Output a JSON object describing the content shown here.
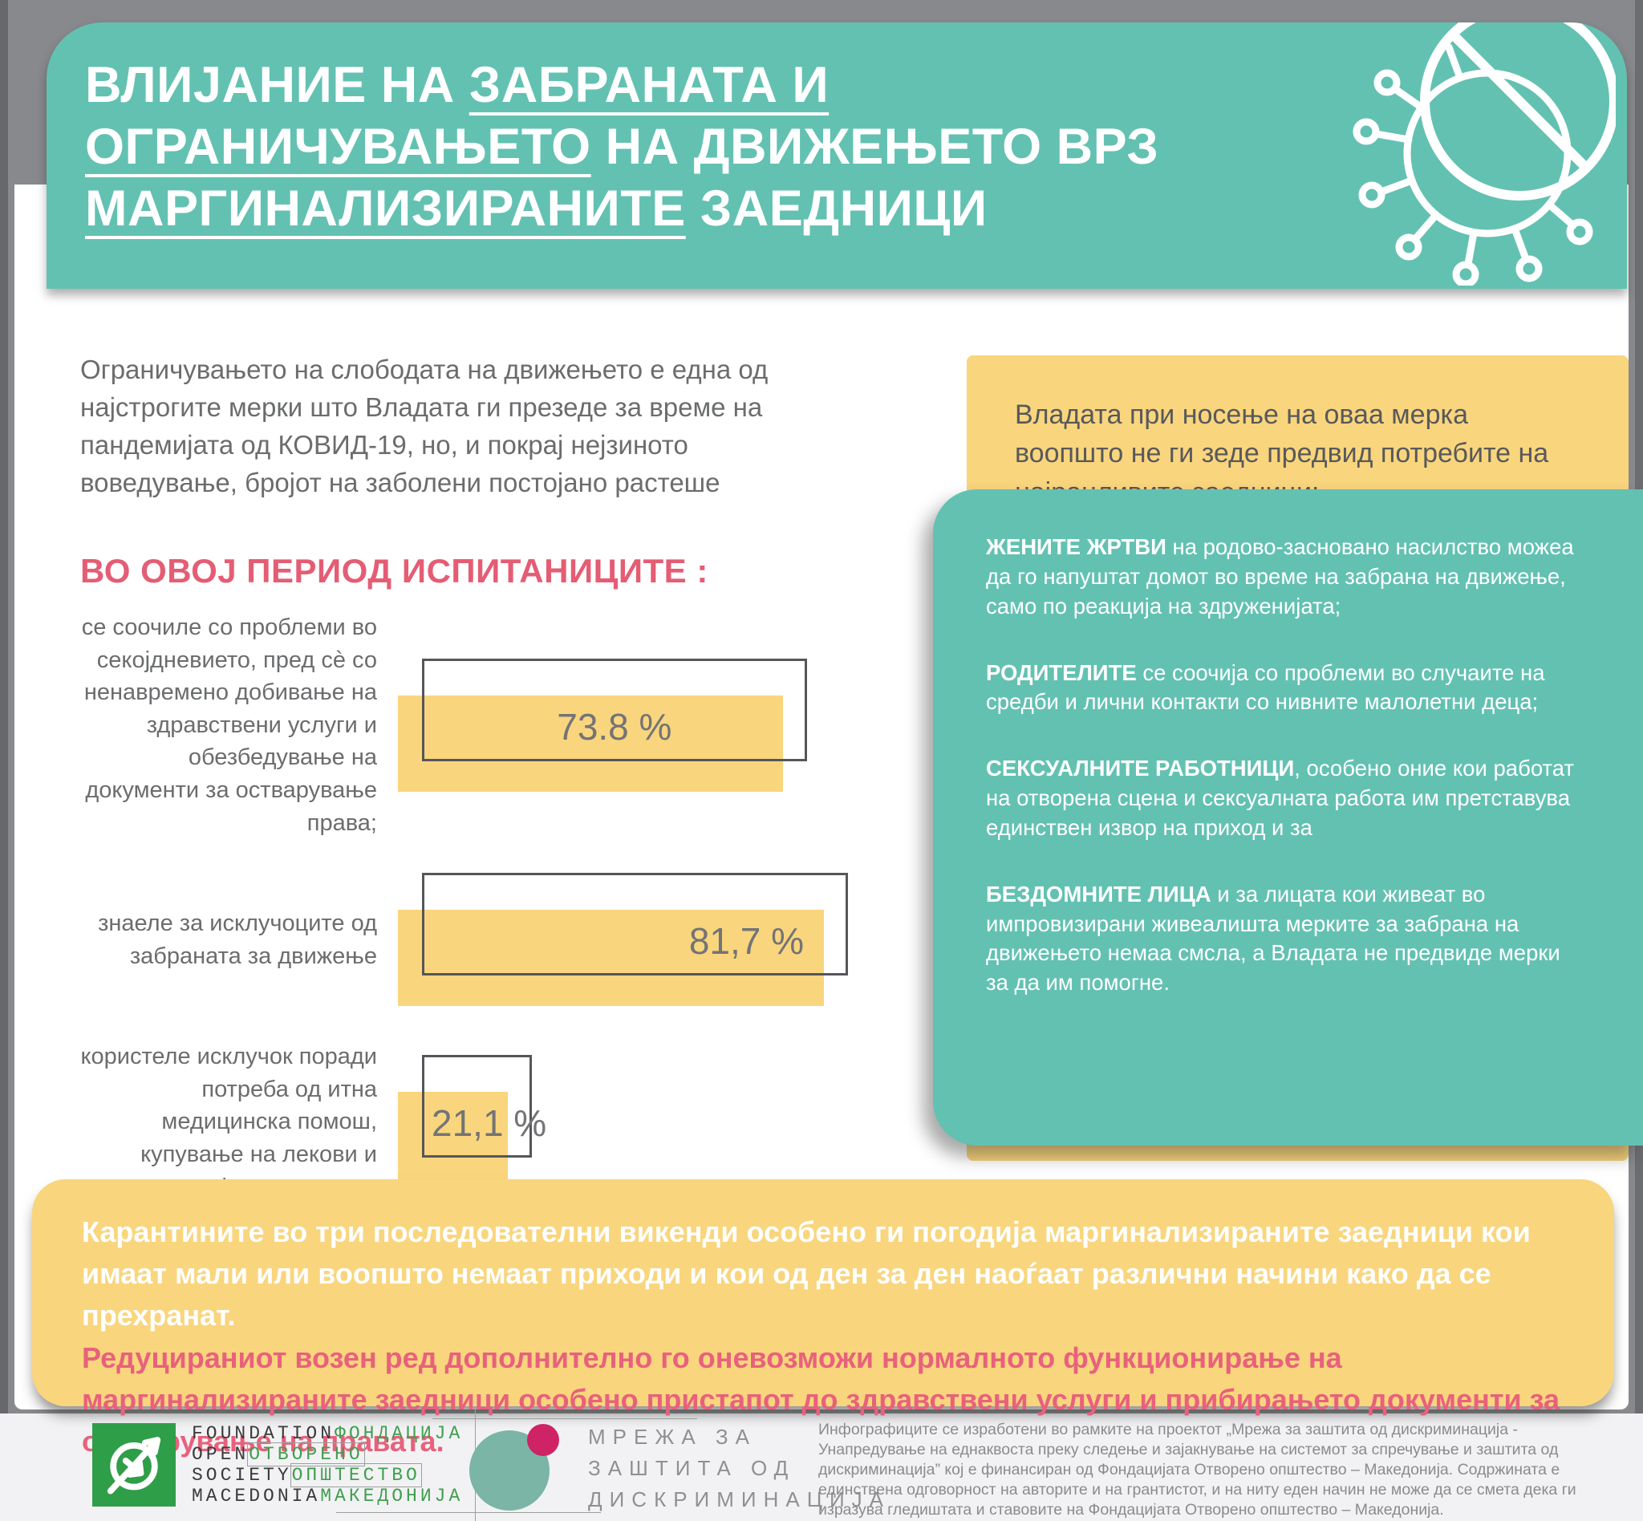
{
  "colors": {
    "teal": "#63c1b2",
    "yellow": "#f9d57d",
    "pink_accent": "#e45d74",
    "banner_pink": "#e8617c",
    "body_text_gray": "#6b6c6e",
    "fosm_green": "#2f9e48",
    "mzd_teal": "#7ab5a6",
    "mzd_pink": "#ce2364"
  },
  "header": {
    "title_part1": "ВЛИЈАНИЕ НА ",
    "title_underline1": "ЗАБРАНАТА И ОГРАНИЧУВАЊЕТО",
    "title_part2": " НА ДВИЖЕЊЕТО ВРЗ ",
    "title_underline2": "МАРГИНАЛИЗИРАНИТЕ",
    "title_part3": " ЗАЕДНИЦИ",
    "icon": "virus-prohibition-icon"
  },
  "intro": {
    "paragraph": "Ограничувањето на слободата на движењето е една од најстрогите мерки што Владата ги презеде за време на пандемијата од КОВИД-19, но, и покрај нејзиното воведување, бројот на заболени постојано растеше",
    "heading": "ВО ОВОЈ ПЕРИОД ИСПИТАНИЦИТЕ :"
  },
  "chart_data": {
    "type": "bar",
    "orientation": "horizontal",
    "categories": [
      "се соочиле со проблеми во секојдневието, пред сè со ненавремено добивање на здравствени услуги и обезбедување на документи за остварување права;",
      "знаеле за исклучоците од забраната за движење",
      "користеле исклучок поради потреба од итна медицинска помош, купување на лекови и семејно насилство."
    ],
    "values": [
      73.8,
      81.7,
      21.1
    ],
    "value_labels": [
      "73.8 %",
      "81,7 %",
      "21,1 %"
    ],
    "xlim": [
      0,
      100
    ],
    "bar_color": "#f9d57d",
    "grid": false,
    "legend": false,
    "title": "ВО ОВОЈ ПЕРИОД ИСПИТАНИЦИТЕ :"
  },
  "right_column": {
    "intro": "Владата при носење на оваа мерка воопшто не ги зеде предвид потребите на најранливите заедници:",
    "groups": [
      {
        "bold": "ЖЕНИТЕ ЖРТВИ",
        "text": " на родово-засновано насилство можеа да го напуштат домот во време на забрана на движење, само по реакција на здруженијата;"
      },
      {
        "bold": "РОДИТЕЛИТЕ",
        "text": " се соочија со проблеми во случаите на средби и лични контакти со нивните малолетни деца;"
      },
      {
        "bold": "СЕКСУАЛНИТЕ РАБОТНИЦИ",
        "text": ", особено оние кои работат на отворена сцена и сексуалната работа им претставува единствен извор на приход и за"
      },
      {
        "bold": "БЕЗДОМНИТЕ ЛИЦА",
        "text": " и за лицата кои живеат во импровизирани живеалишта мерките за забрана на движењето немаа смсла, а Владата не предвиде мерки за да им помогне."
      }
    ]
  },
  "banner": {
    "white_text": "Карантините во три последователни викенди особено ги погодија маргинализираните заедници кои имаат мали или воопшто немаат приходи и кои од ден за ден наоѓаат различни начини како да се прехранат.",
    "pink_text": "Редуцираниот возен ред дополнително го оневозможи нормалното функционирање на маргинализираните заедници особено пристапот до здравствени услуги и прибирањето документи за остварување на правата."
  },
  "footer": {
    "fosm_logo": {
      "line1_en": "FOUNDATION",
      "line1_mk": "ФОНДАЦИЈА",
      "line2_en": "OPEN",
      "line2_mk": "ОТВОРЕНО",
      "line3_en": "SOCIETY",
      "line3_mk": "ОПШТЕСТВО",
      "line4_en": "MACEDONIA",
      "line4_mk": "МАКЕДОНИЈА"
    },
    "mzd_logo": {
      "line1": "МРЕЖА ЗА",
      "line2": "ЗАШТИТА ОД",
      "line3": "ДИСКРИМИНАЦИЈА"
    },
    "disclaimer": "Инфографиците се изработени во рамките на проектот „Мрежа за заштита од дискриминација - Унапредување на еднаквоста преку следење и зајакнување на системот за спречување и заштита од дискриминација” кој е финансиран од Фондацијата Отворено општество – Македонија. Содржината е единствена одговорност на авторите и на грантистот, и на ниту еден начин не може да се смета дека ги изразува гледиштата и ставовите на Фондацијата Отворено општество – Македонија."
  }
}
